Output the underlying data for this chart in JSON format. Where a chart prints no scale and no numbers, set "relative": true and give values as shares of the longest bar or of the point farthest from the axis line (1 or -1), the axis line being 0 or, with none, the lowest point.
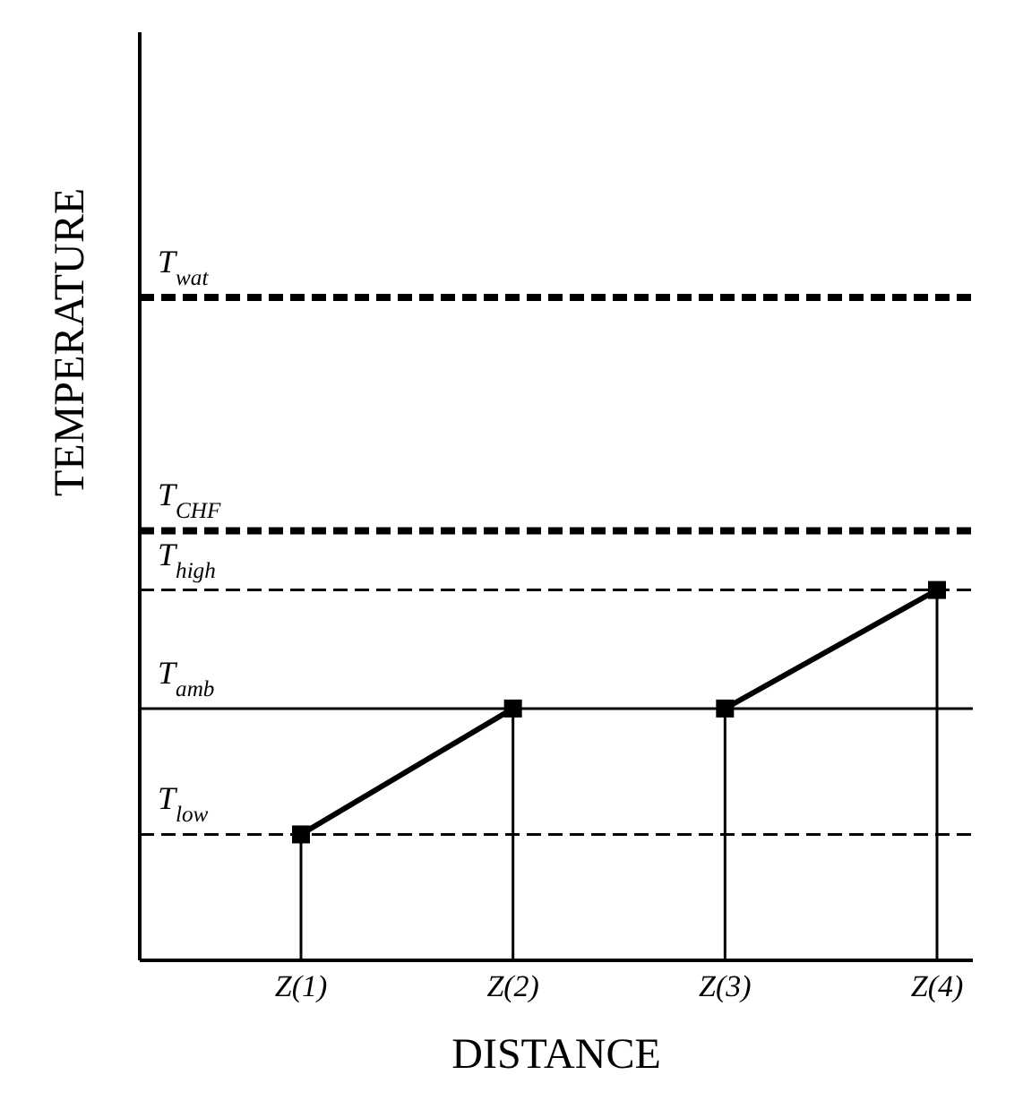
{
  "chart_data": {
    "type": "line",
    "relative": true,
    "xlabel": "DISTANCE",
    "ylabel": "TEMPERATURE",
    "categories": [
      "Z(1)",
      "Z(2)",
      "Z(3)",
      "Z(4)"
    ],
    "series": [
      {
        "color": "#000000",
        "values": [
          0.34,
          0.68,
          null,
          null
        ]
      },
      {
        "color": "#000000",
        "values": [
          null,
          null,
          0.68,
          1
        ]
      }
    ],
    "marker": "square",
    "line_style": "solid",
    "grid": false,
    "legend": false,
    "ref_lines": [
      {
        "axis": "y",
        "value": 1.79,
        "label": "T$_{wat}$",
        "line_style": "dashed",
        "color": "#000000"
      },
      {
        "axis": "y",
        "value": 1.16,
        "label": "T$_{CHF}$",
        "line_style": "dashed",
        "color": "#000000"
      },
      {
        "axis": "y",
        "value": 1,
        "label": "T$_{high}$",
        "line_style": "dashed",
        "color": "#000000"
      },
      {
        "axis": "y",
        "value": 0.68,
        "label": "T$_{amb}$",
        "line_style": "solid",
        "color": "#000000"
      },
      {
        "axis": "y",
        "value": 0.34,
        "label": "T$_{low}$",
        "line_style": "dashed",
        "color": "#000000"
      },
      {
        "axis": "x",
        "value": "Z(1)",
        "color": "#000000"
      },
      {
        "axis": "x",
        "value": "Z(2)",
        "color": "#000000"
      },
      {
        "axis": "x",
        "value": "Z(3)",
        "color": "#000000"
      },
      {
        "axis": "x",
        "value": "Z(4)",
        "color": "#000000"
      }
    ]
  }
}
